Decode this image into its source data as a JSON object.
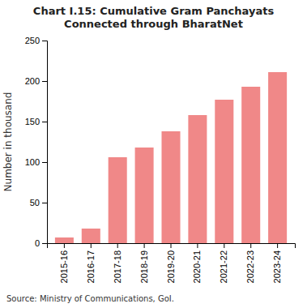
{
  "chart_data": {
    "type": "bar",
    "title": "Chart I.15: Cumulative Gram Panchayats Connected through BharatNet",
    "categories": [
      "2015-16",
      "2016-17",
      "2017-18",
      "2018-19",
      "2019-20",
      "2020-21",
      "2021-22",
      "2022-23",
      "2023-24"
    ],
    "values": [
      7,
      18,
      106,
      118,
      138,
      158,
      177,
      193,
      211
    ],
    "color": "#f08888",
    "ylabel": "Number in thousand",
    "ylim": [
      0,
      250
    ],
    "yticks": [
      0,
      50,
      100,
      150,
      200,
      250
    ],
    "grid": false,
    "source": "Source: Ministry of Communications, GoI."
  }
}
